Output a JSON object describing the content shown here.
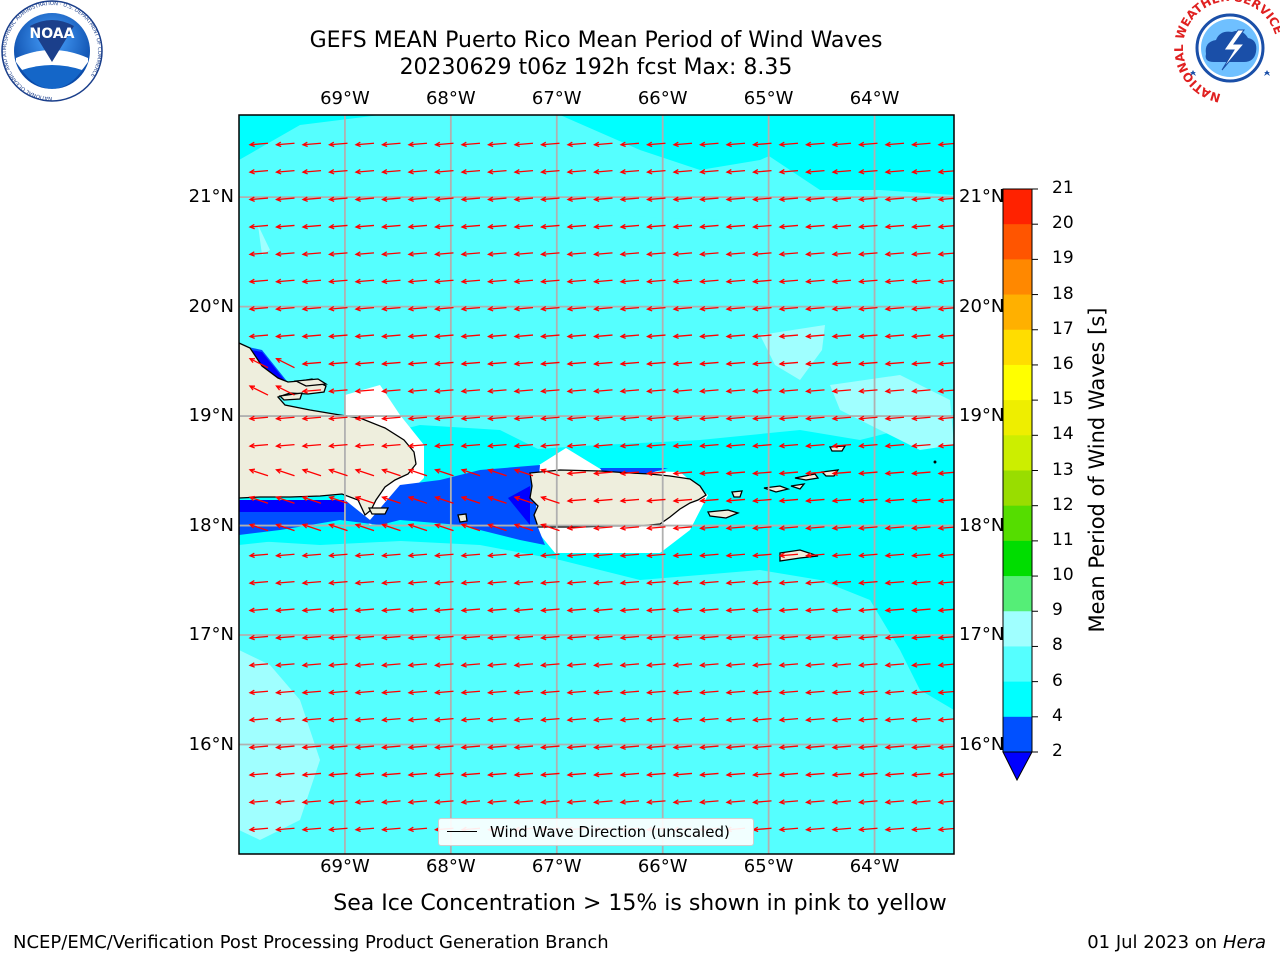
{
  "header": {
    "title_line1": "GEFS MEAN Puerto Rico Mean Period of Wind Waves",
    "title_line2": "20230629 t06z 192h fcst   Max: 8.35"
  },
  "logos": {
    "noaa": {
      "text": "NOAA",
      "ring_text": "NATIONAL OCEANIC AND ATMOSPHERIC ADMINISTRATION · U.S. DEPARTMENT OF COMMERCE"
    },
    "nws": {
      "ring_text": "NATIONAL WEATHER SERVICE"
    }
  },
  "map": {
    "lon_range": [
      -70,
      -63.25
    ],
    "lat_range": [
      15,
      21.75
    ],
    "lon_ticks": [
      "69°W",
      "68°W",
      "67°W",
      "66°W",
      "65°W",
      "64°W"
    ],
    "lat_ticks": [
      "21°N",
      "20°N",
      "19°N",
      "18°N",
      "17°N",
      "16°N"
    ],
    "grid": true,
    "arrow_color": "#ff0000",
    "arrow_direction": "toward west-southwest",
    "land_color": "#eeeedd",
    "legend": {
      "label": "Wind Wave Direction (unscaled)",
      "placement": "bottom-center"
    }
  },
  "colorbar": {
    "label": "Mean Period of Wind Waves [s]",
    "ticks": [
      "2",
      "4",
      "6",
      "8",
      "9",
      "10",
      "11",
      "12",
      "13",
      "14",
      "15",
      "16",
      "17",
      "18",
      "19",
      "20",
      "21"
    ],
    "colors": [
      "#0050ff",
      "#00ffff",
      "#55ffff",
      "#a0ffff",
      "#55ee77",
      "#00dd00",
      "#55dd00",
      "#99dd00",
      "#ccee00",
      "#eeee00",
      "#ffff00",
      "#ffdd00",
      "#ffb000",
      "#ff8800",
      "#ff5500",
      "#ff2200",
      "#ff0000"
    ],
    "under_color": "#0000ff"
  },
  "caption": "Sea Ice Concentration > 15% is shown in pink to yellow",
  "footer": {
    "left": "NCEP/EMC/Verification Post Processing Product Generation Branch",
    "right_date": "01 Jul 2023 on ",
    "right_host": "Hera"
  }
}
